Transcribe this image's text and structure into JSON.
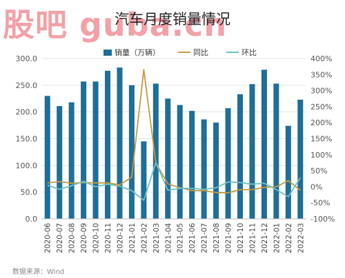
{
  "watermark": "股吧 guba.cn",
  "chart_data": {
    "type": "bar",
    "title": "汽车月度销量情况",
    "categories": [
      "2020-06",
      "2020-07",
      "2020-08",
      "2020-09",
      "2020-10",
      "2020-11",
      "2020-12",
      "2021-01",
      "2021-02",
      "2021-03",
      "2021-04",
      "2021-05",
      "2021-06",
      "2021-07",
      "2021-08",
      "2021-09",
      "2021-10",
      "2021-11",
      "2021-12",
      "2022-01",
      "2022-02",
      "2022-03"
    ],
    "ylim_left": [
      0,
      300
    ],
    "yticks_left": [
      "0.0",
      "50.0",
      "100.0",
      "150.0",
      "200.0",
      "250.0",
      "300.0"
    ],
    "ylim_right": [
      -100,
      400
    ],
    "yticks_right": [
      "-100%",
      "-50%",
      "0%",
      "50%",
      "100%",
      "150%",
      "200%",
      "250%",
      "300%",
      "350%",
      "400%"
    ],
    "series": [
      {
        "name": "销量（万辆）",
        "type": "bar",
        "axis": "left",
        "color": "#1f6e97",
        "values": [
          230,
          211,
          218,
          257,
          257,
          277,
          283,
          250,
          145,
          253,
          225,
          213,
          202,
          186,
          180,
          207,
          233,
          252,
          279,
          253,
          174,
          223
        ]
      },
      {
        "name": "同比",
        "type": "line",
        "axis": "right",
        "color": "#c59a3e",
        "values": [
          12,
          16,
          11,
          13,
          12,
          12,
          6,
          30,
          365,
          75,
          9,
          -3,
          -12,
          -12,
          -18,
          -19,
          -9,
          -9,
          -2,
          0,
          19,
          -11
        ]
      },
      {
        "name": "环比",
        "type": "line",
        "axis": "right",
        "color": "#6fc1c2",
        "values": [
          5,
          -8,
          3,
          17,
          0,
          8,
          2,
          -12,
          -42,
          75,
          -11,
          -5,
          -5,
          -8,
          -3,
          15,
          13,
          8,
          11,
          -9,
          -31,
          28
        ]
      }
    ],
    "grid": true,
    "legend": "top"
  },
  "source": "数据来源：Wind"
}
